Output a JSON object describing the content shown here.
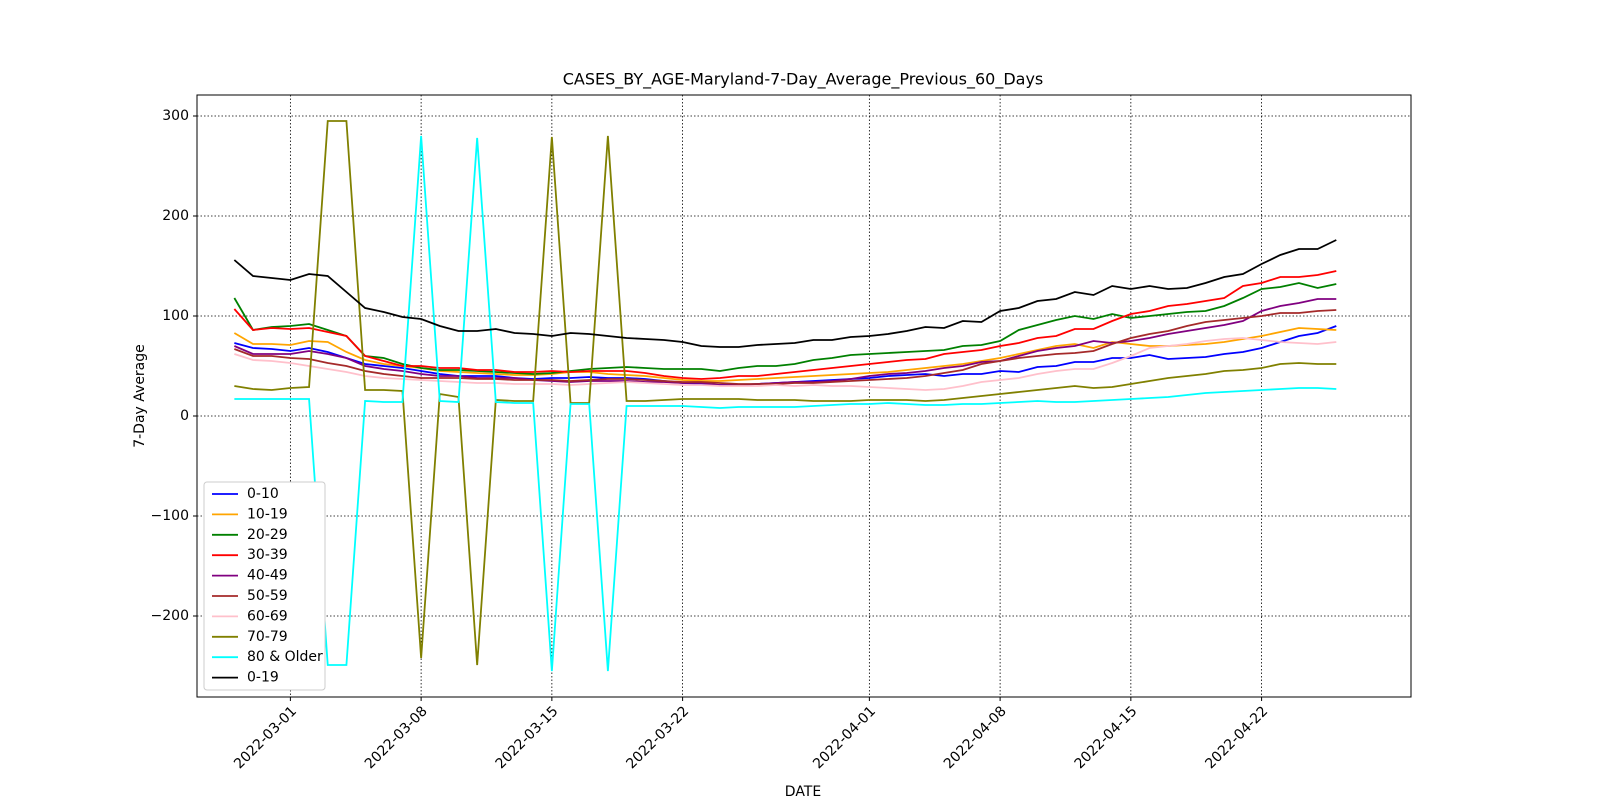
{
  "chart_data": {
    "type": "line",
    "title": "CASES_BY_AGE-Maryland-7-Day_Average_Previous_60_Days",
    "xlabel": "DATE",
    "ylabel": "7-Day Average",
    "x": [
      "2022-02-26",
      "2022-02-27",
      "2022-02-28",
      "2022-03-01",
      "2022-03-02",
      "2022-03-03",
      "2022-03-04",
      "2022-03-05",
      "2022-03-06",
      "2022-03-07",
      "2022-03-08",
      "2022-03-09",
      "2022-03-10",
      "2022-03-11",
      "2022-03-12",
      "2022-03-13",
      "2022-03-14",
      "2022-03-15",
      "2022-03-16",
      "2022-03-17",
      "2022-03-18",
      "2022-03-19",
      "2022-03-20",
      "2022-03-21",
      "2022-03-22",
      "2022-03-23",
      "2022-03-24",
      "2022-03-25",
      "2022-03-26",
      "2022-03-27",
      "2022-03-28",
      "2022-03-29",
      "2022-03-30",
      "2022-03-31",
      "2022-04-01",
      "2022-04-02",
      "2022-04-03",
      "2022-04-04",
      "2022-04-05",
      "2022-04-06",
      "2022-04-07",
      "2022-04-08",
      "2022-04-09",
      "2022-04-10",
      "2022-04-11",
      "2022-04-12",
      "2022-04-13",
      "2022-04-14",
      "2022-04-15",
      "2022-04-16",
      "2022-04-17",
      "2022-04-18",
      "2022-04-19",
      "2022-04-20",
      "2022-04-21",
      "2022-04-22",
      "2022-04-23",
      "2022-04-24",
      "2022-04-25",
      "2022-04-26"
    ],
    "series": [
      {
        "name": "0-10",
        "color": "#0000ff",
        "values": [
          73,
          68,
          67,
          65,
          68,
          64,
          58,
          52,
          50,
          48,
          45,
          42,
          40,
          40,
          40,
          38,
          37,
          38,
          38,
          39,
          38,
          38,
          37,
          35,
          33,
          32,
          31,
          31,
          32,
          33,
          34,
          35,
          36,
          37,
          38,
          40,
          41,
          42,
          40,
          42,
          42,
          45,
          44,
          49,
          50,
          54,
          54,
          58,
          58,
          61,
          57,
          58,
          59,
          62,
          64,
          68,
          74,
          80,
          83,
          90
        ]
      },
      {
        "name": "10-19",
        "color": "#ffa500",
        "values": [
          83,
          72,
          72,
          71,
          75,
          74,
          64,
          56,
          52,
          50,
          48,
          45,
          44,
          43,
          42,
          41,
          41,
          42,
          44,
          44,
          42,
          41,
          40,
          38,
          36,
          35,
          35,
          36,
          37,
          38,
          39,
          40,
          41,
          42,
          43,
          44,
          46,
          48,
          50,
          52,
          55,
          58,
          62,
          66,
          70,
          72,
          68,
          74,
          72,
          70,
          70,
          71,
          72,
          74,
          77,
          80,
          84,
          88,
          87,
          86
        ]
      },
      {
        "name": "20-29",
        "color": "#008000",
        "values": [
          118,
          86,
          89,
          90,
          92,
          86,
          80,
          60,
          58,
          52,
          48,
          46,
          46,
          45,
          44,
          43,
          42,
          43,
          45,
          47,
          48,
          49,
          48,
          47,
          47,
          47,
          45,
          48,
          50,
          50,
          52,
          56,
          58,
          61,
          62,
          63,
          64,
          65,
          66,
          70,
          71,
          75,
          86,
          91,
          96,
          100,
          97,
          102,
          98,
          100,
          102,
          104,
          105,
          110,
          118,
          127,
          129,
          133,
          128,
          132
        ]
      },
      {
        "name": "30-39",
        "color": "#ff0000",
        "values": [
          107,
          86,
          88,
          87,
          88,
          84,
          80,
          60,
          55,
          50,
          50,
          48,
          48,
          46,
          46,
          44,
          44,
          45,
          44,
          45,
          45,
          45,
          43,
          40,
          38,
          37,
          38,
          40,
          40,
          42,
          44,
          46,
          48,
          50,
          52,
          54,
          56,
          57,
          62,
          64,
          66,
          70,
          73,
          78,
          80,
          87,
          87,
          95,
          102,
          105,
          110,
          112,
          115,
          118,
          130,
          133,
          139,
          139,
          141,
          145
        ]
      },
      {
        "name": "40-49",
        "color": "#800080",
        "values": [
          70,
          62,
          62,
          62,
          65,
          62,
          58,
          50,
          47,
          45,
          42,
          40,
          40,
          38,
          38,
          38,
          36,
          35,
          34,
          35,
          35,
          35,
          34,
          34,
          33,
          33,
          31,
          31,
          32,
          33,
          34,
          34,
          35,
          37,
          40,
          42,
          43,
          45,
          48,
          50,
          54,
          55,
          60,
          65,
          68,
          70,
          75,
          73,
          75,
          78,
          82,
          85,
          88,
          91,
          95,
          105,
          110,
          113,
          117,
          117
        ]
      },
      {
        "name": "50-59",
        "color": "#a52a2a",
        "values": [
          67,
          60,
          60,
          58,
          57,
          53,
          50,
          45,
          42,
          40,
          38,
          38,
          38,
          37,
          37,
          36,
          36,
          36,
          35,
          36,
          37,
          37,
          36,
          35,
          34,
          34,
          33,
          32,
          32,
          32,
          33,
          33,
          34,
          35,
          36,
          37,
          38,
          40,
          43,
          46,
          52,
          55,
          58,
          60,
          62,
          63,
          65,
          72,
          78,
          82,
          85,
          90,
          94,
          96,
          98,
          100,
          103,
          103,
          105,
          106
        ]
      },
      {
        "name": "60-69",
        "color": "#ffc0cb",
        "values": [
          62,
          56,
          55,
          53,
          50,
          47,
          44,
          40,
          38,
          37,
          36,
          35,
          34,
          33,
          33,
          32,
          32,
          32,
          31,
          32,
          33,
          34,
          33,
          32,
          31,
          31,
          30,
          30,
          30,
          31,
          30,
          31,
          30,
          30,
          29,
          28,
          27,
          26,
          27,
          30,
          34,
          36,
          38,
          42,
          45,
          47,
          47,
          53,
          60,
          68,
          70,
          72,
          75,
          77,
          78,
          76,
          74,
          73,
          72,
          74
        ]
      },
      {
        "name": "70-79",
        "color": "#808000",
        "values": [
          30,
          27,
          26,
          28,
          29,
          295,
          295,
          26,
          26,
          25,
          -242,
          22,
          19,
          -249,
          16,
          15,
          15,
          279,
          13,
          13,
          280,
          15,
          15,
          16,
          17,
          17,
          17,
          17,
          16,
          16,
          16,
          15,
          15,
          15,
          16,
          16,
          16,
          15,
          16,
          18,
          20,
          22,
          24,
          26,
          28,
          30,
          28,
          29,
          32,
          35,
          38,
          40,
          42,
          45,
          46,
          48,
          52,
          53,
          52,
          52
        ]
      },
      {
        "name": "80 & Older",
        "color": "#00ffff",
        "values": [
          17,
          17,
          17,
          17,
          17,
          -249,
          -249,
          15,
          14,
          14,
          280,
          15,
          14,
          278,
          14,
          13,
          13,
          -255,
          12,
          12,
          -255,
          10,
          10,
          10,
          10,
          9,
          8,
          9,
          9,
          9,
          9,
          10,
          11,
          12,
          12,
          13,
          12,
          11,
          11,
          12,
          12,
          13,
          14,
          15,
          14,
          14,
          15,
          16,
          17,
          18,
          19,
          21,
          23,
          24,
          25,
          26,
          27,
          28,
          28,
          27
        ]
      },
      {
        "name": "0-19",
        "color": "#000000",
        "values": [
          156,
          140,
          138,
          136,
          142,
          140,
          124,
          108,
          104,
          99,
          97,
          90,
          85,
          85,
          87,
          83,
          82,
          80,
          83,
          82,
          80,
          78,
          77,
          76,
          74,
          70,
          69,
          69,
          71,
          72,
          73,
          76,
          76,
          79,
          80,
          82,
          85,
          89,
          88,
          95,
          94,
          105,
          108,
          115,
          117,
          124,
          121,
          130,
          127,
          130,
          127,
          128,
          133,
          139,
          142,
          152,
          161,
          167,
          167,
          176
        ]
      }
    ],
    "xlim": [
      "2022-02-24",
      "2022-04-30"
    ],
    "xticks": [
      "2022-03-01",
      "2022-03-08",
      "2022-03-15",
      "2022-03-22",
      "2022-04-01",
      "2022-04-08",
      "2022-04-15",
      "2022-04-22"
    ],
    "ylim": [
      -281,
      321
    ],
    "yticks": [
      {
        "value": -200,
        "label": "−200"
      },
      {
        "value": -100,
        "label": "−100"
      },
      0,
      100,
      200,
      300
    ],
    "grid": true,
    "legend": "lower left"
  }
}
